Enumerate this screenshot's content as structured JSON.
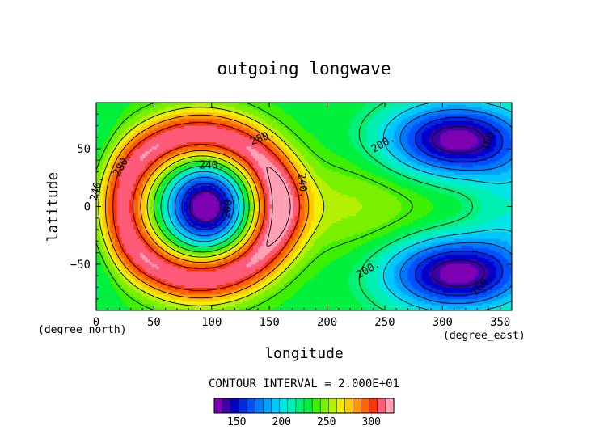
{
  "chart_data": {
    "type": "contour",
    "title": "outgoing longwave",
    "xlabel": "longitude",
    "ylabel": "latitude",
    "x_unit": "(degree_east)",
    "y_unit": "(degree_north)",
    "xlim": [
      0,
      360
    ],
    "ylim": [
      -90,
      90
    ],
    "x_ticks": [
      "0",
      "50",
      "100",
      "150",
      "200",
      "250",
      "300",
      "350"
    ],
    "y_ticks": [
      "50",
      "0",
      "−50"
    ],
    "contour_interval_text": "CONTOUR INTERVAL = 2.000E+01",
    "contour_interval": 20,
    "colorbar": {
      "range": [
        125,
        325
      ],
      "ticks": [
        "150",
        "200",
        "250",
        "300"
      ],
      "colors": [
        "#7d00b4",
        "#3c00aa",
        "#0000c8",
        "#0028e6",
        "#0050ff",
        "#0078ff",
        "#00a0ff",
        "#00c8ff",
        "#00e6e6",
        "#00f0b4",
        "#00f078",
        "#00f03c",
        "#3cf000",
        "#78f000",
        "#b4f000",
        "#f0f000",
        "#ffc800",
        "#ff9600",
        "#ff6400",
        "#ff3200",
        "#ff5a78",
        "#ffa0b4"
      ]
    },
    "contour_labels": [
      "280.",
      "240.",
      "240.",
      "280.",
      "240.",
      "200.",
      "200.",
      "160.",
      "200.",
      "160."
    ],
    "features": [
      {
        "name": "outer warm ring",
        "center": [
          90,
          0
        ],
        "max": 320
      },
      {
        "name": "central minimum",
        "center": [
          95,
          0
        ],
        "min": 140
      },
      {
        "name": "northern minimum",
        "center": [
          312,
          58
        ],
        "min": 130
      },
      {
        "name": "southern minimum",
        "center": [
          312,
          -58
        ],
        "min": 130
      }
    ]
  },
  "annotations": [
    {
      "text": "280.",
      "x": 25,
      "y": 35,
      "rot": -60
    },
    {
      "text": "240.",
      "x": 3,
      "y": 15,
      "rot": -75
    },
    {
      "text": "240.",
      "x": 100,
      "y": 33,
      "rot": 0
    },
    {
      "text": "280.",
      "x": 145,
      "y": 57,
      "rot": -20
    },
    {
      "text": "240.",
      "x": 176,
      "y": 18,
      "rot": 85
    },
    {
      "text": "200.",
      "x": 117,
      "y": 0,
      "rot": -80
    },
    {
      "text": "200.",
      "x": 250,
      "y": 52,
      "rot": -30
    },
    {
      "text": "160.",
      "x": 343,
      "y": 58,
      "rot": -70
    },
    {
      "text": "200.",
      "x": 237,
      "y": -57,
      "rot": -30
    },
    {
      "text": "160.",
      "x": 336,
      "y": -70,
      "rot": -45
    }
  ]
}
